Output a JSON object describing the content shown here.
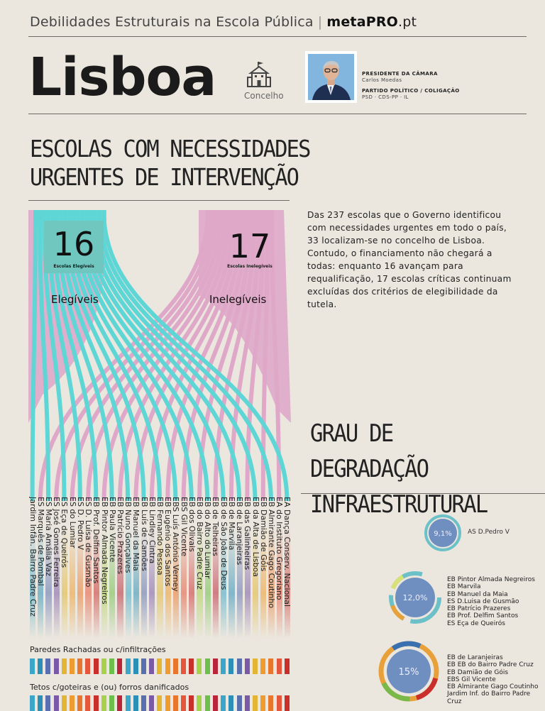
{
  "header": {
    "series_title": "Debilidades Estruturais na Escola Pública",
    "separator": "|",
    "brand": "metaPRO",
    "brand_tld": ".pt"
  },
  "city": {
    "name": "Lisboa",
    "icon": "school-building-icon",
    "type_label": "Concelho"
  },
  "mayor": {
    "role_label": "PRESIDENTE DA CÂMARA",
    "name": "Carlos Moedas",
    "party_label": "PARTIDO POLÍTICO / COLIGAÇÃO",
    "party": "PSD · CDS-PP · IL"
  },
  "section1": {
    "title_line1": "ESCOLAS COM NECESSIDADES",
    "title_line2": "URGENTES DE INTERVENÇÃO",
    "intro": "Das 237 escolas que o Governo identificou com necessidades urgentes em todo o país, 33 localizam-se no concelho de Lisboa. Contudo, o financiamento  não chegará a todas: enquanto 16 avançam para requalificação, 17 escolas críticas continuam excluídas dos critérios de elegibilidade da tutela."
  },
  "eligibility": {
    "eligible_count": "16",
    "eligible_small": "Escolas Elegíveis",
    "eligible_label": "Elegíveis",
    "ineligible_count": "17",
    "ineligible_small": "Escolas Inelegíveis",
    "ineligible_label": "Inelegíveis",
    "colors": {
      "eligible": "#5fd6d6",
      "ineligible": "#dfa8c9"
    }
  },
  "schools": [
    "Jardim Infân. Bairro Padre Cruz",
    "ES Marquês de Pombal",
    "ES Maria Amália Vaz",
    "ES José Gomes Ferreira",
    "ES Eça de Queirós",
    "ES do Lumiar",
    "ES D. Pedro V",
    "ES D. Luísa de Gusmão",
    "EB Prof. Delfim Santos",
    "EB Pintor Almada Negreiros",
    "EB Paula Vicente",
    "EB Patrício Prazeres",
    "EB Nuno Gonçalves",
    "EB Manuel da Maia",
    "EB Luís de Camões",
    "EB Lindley Cintra",
    "EB Fernando Pessoa",
    "EB Eugénio dos Santos",
    "EBS Luís António Verney",
    "EBS Gil Vicente",
    "EB dos Olivais",
    "EB do Bairro Padre Cruz",
    "EB do Alto do Lumiar",
    "EB de Telheiras",
    "EB de São João de Deus",
    "EB de Marvila",
    "EB de Laranjeiras",
    "EB das Galinheiras",
    "EB da Alta de Lisboa",
    "EB Damião de Góis",
    "EB Almirante Gago Coutinho",
    "EA do Instituto Gregoriano",
    "EA Dança Conserv. Nacional"
  ],
  "section2": {
    "title_line1": "GRAU DE DEGRADAÇÃO",
    "title_line2": "INFRAESTRUTURAL"
  },
  "indicators": [
    {
      "label": "Paredes Rachadas ou c/infiltrações"
    },
    {
      "label": "Tetos c/goteiras e (ou) forros danificados"
    }
  ],
  "degradation_groups": [
    {
      "percent": "9,1%",
      "schools": [
        "AS D.Pedro V"
      ]
    },
    {
      "percent": "12,0%",
      "schools": [
        "EB Pintor Almada Negreiros",
        "EB Marvila",
        "EB Manuel da Maia",
        "ES D.Luisa de Gusmão",
        "EB Patrício Prazeres",
        "EB Prof. Delfim Santos",
        "ES Eça de Queirós"
      ]
    },
    {
      "percent": "15%",
      "schools": [
        "EB de Laranjeiras",
        "EB EB do Bairro Padre Cruz",
        "EB Damião de Góis",
        "EBS Gil Vicente",
        "EB Almirante Gago Coutinho",
        "Jardim Inf. do Bairro Padre Cruz"
      ]
    }
  ],
  "palette": [
    "#3aa6c9",
    "#2b8fb8",
    "#5a6fb0",
    "#7a5aa6",
    "#e2b634",
    "#ee9b2f",
    "#e8772d",
    "#e5563a",
    "#c9302c",
    "#a8d14b",
    "#6cbf4a",
    "#b9263a"
  ]
}
